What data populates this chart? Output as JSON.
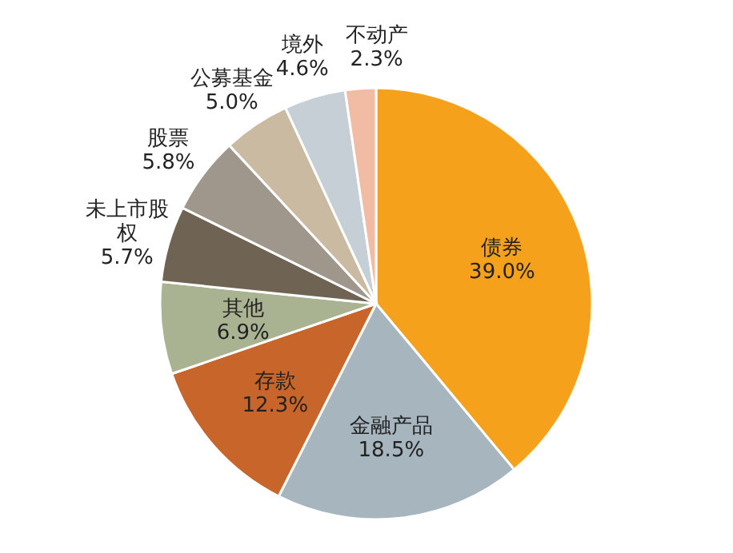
{
  "chart_data": {
    "type": "pie",
    "categories": [
      "债券",
      "金融产品",
      "存款",
      "其他",
      "未上市股权",
      "股票",
      "公募基金",
      "境外",
      "不动产"
    ],
    "values": [
      39.0,
      18.5,
      12.3,
      6.9,
      5.7,
      5.8,
      5.0,
      4.6,
      2.3
    ],
    "value_labels": [
      "39.0%",
      "18.5%",
      "12.3%",
      "6.9%",
      "5.7%",
      "5.8%",
      "5.0%",
      "4.6%",
      "2.3%"
    ],
    "colors": [
      "#f5a11c",
      "#a7b5bf",
      "#c7652b",
      "#a9b291",
      "#6f6453",
      "#9f978c",
      "#c9baa1",
      "#c6cfd6",
      "#f1bba4"
    ]
  }
}
